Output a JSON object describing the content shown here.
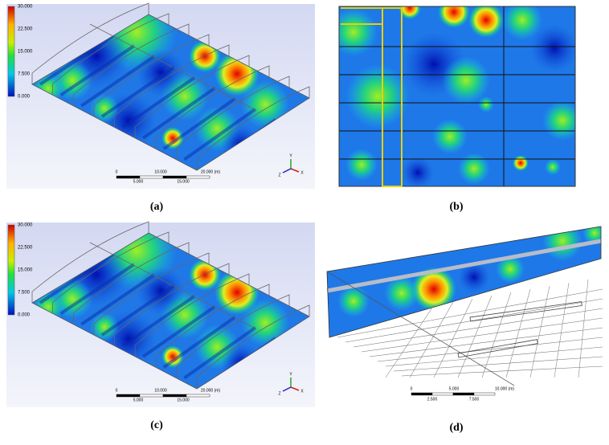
{
  "panels": [
    {
      "label": "(a)",
      "legend": [
        "30.000",
        "22.500",
        "15.000",
        "7.500",
        "0.000"
      ],
      "scale": [
        "0",
        "10.000",
        "20.000 (m)",
        "5.000",
        "15.000"
      ],
      "axes": [
        "Y",
        "X",
        "Z"
      ]
    },
    {
      "label": "(b)"
    },
    {
      "label": "(c)",
      "legend": [
        "30.000",
        "22.500",
        "15.000",
        "7.500",
        "0.000"
      ],
      "scale": [
        "0",
        "10.000",
        "20.000 (m)",
        "5.000",
        "15.000"
      ],
      "axes": [
        "Y",
        "X",
        "Z"
      ]
    },
    {
      "label": "(d)",
      "scale": [
        "0",
        "5.000",
        "10.000 (m)",
        "2.500",
        "7.500"
      ]
    }
  ]
}
